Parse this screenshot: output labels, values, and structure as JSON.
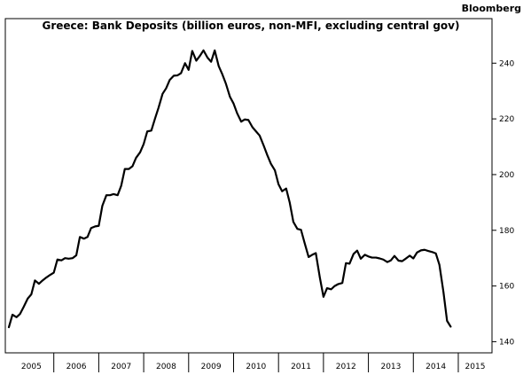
{
  "brand": "Bloomberg",
  "chart_data": {
    "type": "line",
    "title": "Greece: Bank Deposits (billion euros, non-MFI, excluding central gov)",
    "xlabel": "",
    "ylabel": "",
    "x_range": [
      2005.0,
      2015.75
    ],
    "ylim": [
      136,
      256
    ],
    "y_ticks": [
      140,
      160,
      180,
      200,
      220,
      240
    ],
    "x_categories": [
      "2005",
      "2006",
      "2007",
      "2008",
      "2009",
      "2010",
      "2011",
      "2012",
      "2013",
      "2014",
      "2015"
    ],
    "grid": false,
    "legend": "none",
    "line_color": "#000000",
    "series": [
      {
        "values": [
          [
            2005.0,
            145.2
          ],
          [
            2005.08,
            149.7
          ],
          [
            2005.17,
            148.8
          ],
          [
            2005.25,
            150.0
          ],
          [
            2005.33,
            152.5
          ],
          [
            2005.42,
            155.5
          ],
          [
            2005.5,
            157.0
          ],
          [
            2005.58,
            162.0
          ],
          [
            2005.67,
            160.8
          ],
          [
            2005.75,
            162.0
          ],
          [
            2005.83,
            163.0
          ],
          [
            2005.92,
            164.0
          ],
          [
            2006.0,
            164.8
          ],
          [
            2006.08,
            169.5
          ],
          [
            2006.17,
            169.2
          ],
          [
            2006.25,
            170.0
          ],
          [
            2006.33,
            169.8
          ],
          [
            2006.42,
            170.0
          ],
          [
            2006.5,
            171.0
          ],
          [
            2006.58,
            177.6
          ],
          [
            2006.67,
            177.0
          ],
          [
            2006.75,
            177.6
          ],
          [
            2006.83,
            180.8
          ],
          [
            2006.92,
            181.4
          ],
          [
            2007.0,
            181.6
          ],
          [
            2007.08,
            188.8
          ],
          [
            2007.17,
            192.6
          ],
          [
            2007.25,
            192.6
          ],
          [
            2007.33,
            193.0
          ],
          [
            2007.42,
            192.6
          ],
          [
            2007.5,
            196.0
          ],
          [
            2007.58,
            202.0
          ],
          [
            2007.67,
            202.0
          ],
          [
            2007.75,
            203.0
          ],
          [
            2007.83,
            206.0
          ],
          [
            2007.92,
            208.0
          ],
          [
            2008.0,
            211.0
          ],
          [
            2008.08,
            215.5
          ],
          [
            2008.17,
            215.8
          ],
          [
            2008.25,
            220.0
          ],
          [
            2008.33,
            224.0
          ],
          [
            2008.42,
            229.0
          ],
          [
            2008.5,
            231.0
          ],
          [
            2008.58,
            234.0
          ],
          [
            2008.67,
            235.5
          ],
          [
            2008.75,
            235.6
          ],
          [
            2008.83,
            236.4
          ],
          [
            2008.92,
            240.0
          ],
          [
            2009.0,
            237.6
          ],
          [
            2009.08,
            244.4
          ],
          [
            2009.17,
            240.9
          ],
          [
            2009.25,
            242.6
          ],
          [
            2009.33,
            244.6
          ],
          [
            2009.42,
            242.0
          ],
          [
            2009.5,
            240.5
          ],
          [
            2009.58,
            244.6
          ],
          [
            2009.67,
            238.9
          ],
          [
            2009.75,
            236.0
          ],
          [
            2009.83,
            232.6
          ],
          [
            2009.92,
            227.9
          ],
          [
            2010.0,
            225.5
          ],
          [
            2010.08,
            222.0
          ],
          [
            2010.17,
            219.0
          ],
          [
            2010.25,
            219.8
          ],
          [
            2010.33,
            219.6
          ],
          [
            2010.42,
            217.0
          ],
          [
            2010.5,
            215.5
          ],
          [
            2010.58,
            214.0
          ],
          [
            2010.67,
            210.4
          ],
          [
            2010.75,
            207.0
          ],
          [
            2010.83,
            203.9
          ],
          [
            2010.92,
            201.5
          ],
          [
            2011.0,
            196.5
          ],
          [
            2011.08,
            194.0
          ],
          [
            2011.17,
            195.0
          ],
          [
            2011.25,
            189.9
          ],
          [
            2011.33,
            183.0
          ],
          [
            2011.42,
            180.5
          ],
          [
            2011.5,
            180.2
          ],
          [
            2011.58,
            175.5
          ],
          [
            2011.67,
            170.4
          ],
          [
            2011.75,
            171.2
          ],
          [
            2011.83,
            171.8
          ],
          [
            2011.92,
            163.0
          ],
          [
            2012.0,
            156.1
          ],
          [
            2012.08,
            159.2
          ],
          [
            2012.17,
            158.8
          ],
          [
            2012.25,
            160.0
          ],
          [
            2012.33,
            160.7
          ],
          [
            2012.42,
            161.1
          ],
          [
            2012.5,
            168.2
          ],
          [
            2012.58,
            168.0
          ],
          [
            2012.67,
            171.5
          ],
          [
            2012.75,
            172.7
          ],
          [
            2012.83,
            169.8
          ],
          [
            2012.92,
            171.2
          ],
          [
            2013.0,
            170.6
          ],
          [
            2013.08,
            170.2
          ],
          [
            2013.17,
            170.2
          ],
          [
            2013.25,
            169.9
          ],
          [
            2013.33,
            169.5
          ],
          [
            2013.42,
            168.6
          ],
          [
            2013.5,
            169.2
          ],
          [
            2013.58,
            170.8
          ],
          [
            2013.67,
            169.1
          ],
          [
            2013.75,
            168.9
          ],
          [
            2013.83,
            169.8
          ],
          [
            2013.92,
            170.9
          ],
          [
            2014.0,
            169.9
          ],
          [
            2014.08,
            172.0
          ],
          [
            2014.17,
            172.8
          ],
          [
            2014.25,
            173.0
          ],
          [
            2014.33,
            172.6
          ],
          [
            2014.42,
            172.2
          ],
          [
            2014.5,
            171.7
          ],
          [
            2014.58,
            167.6
          ],
          [
            2014.67,
            157.8
          ],
          [
            2014.75,
            147.5
          ],
          [
            2014.83,
            145.4
          ]
        ]
      }
    ]
  }
}
